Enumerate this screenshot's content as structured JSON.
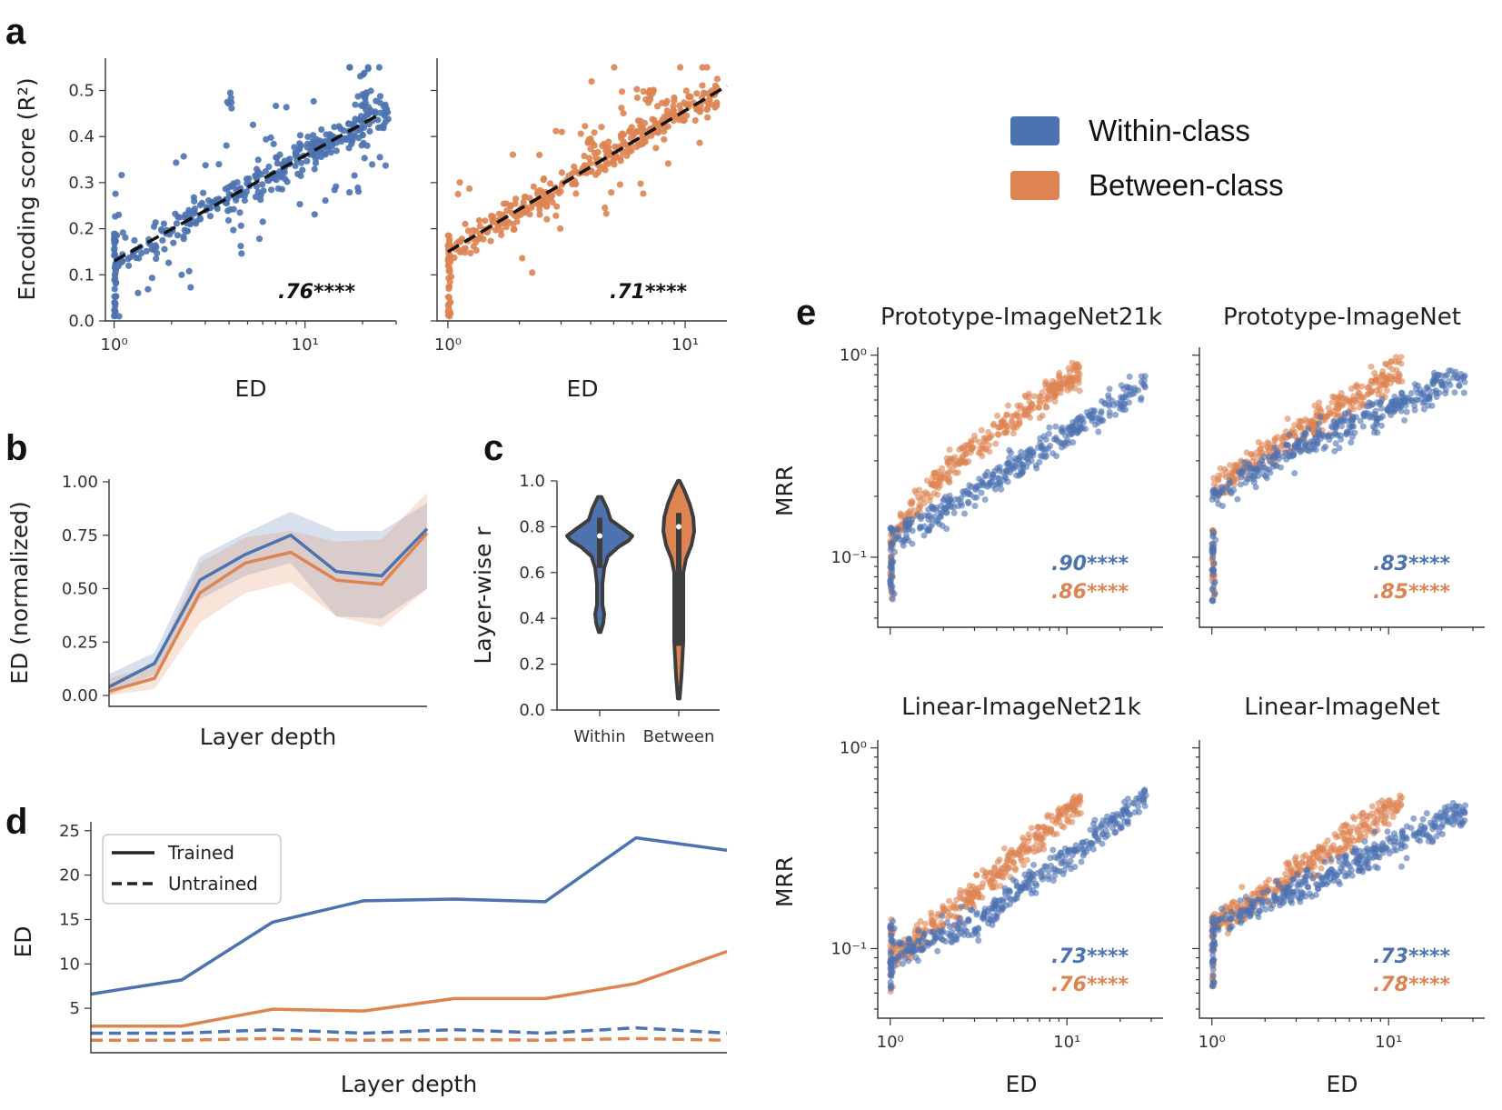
{
  "colors": {
    "within": "#4c72b0",
    "between": "#dd8452",
    "fit": "#111111"
  },
  "legend": {
    "items": [
      {
        "label": "Within-class",
        "color": "#4c72b0"
      },
      {
        "label": "Between-class",
        "color": "#dd8452"
      }
    ]
  },
  "panels": {
    "a": {
      "letter": "a"
    },
    "b": {
      "letter": "b"
    },
    "c": {
      "letter": "c"
    },
    "d": {
      "letter": "d"
    },
    "e": {
      "letter": "e"
    }
  },
  "chart_data": [
    {
      "id": "a-left",
      "type": "scatter",
      "xlabel": "ED",
      "ylabel": "Encoding score (R²)",
      "x_scale": "log",
      "xlim": [
        0.9,
        30
      ],
      "ylim": [
        0,
        0.57
      ],
      "x_ticks": [
        {
          "value": 1,
          "label": "10⁰"
        },
        {
          "value": 10,
          "label": "10¹"
        }
      ],
      "y_ticks": [
        "0.0",
        "0.1",
        "0.2",
        "0.3",
        "0.4",
        "0.5"
      ],
      "series": [
        {
          "color": "#4c72b0",
          "trend": {
            "x": [
              1,
              25
            ],
            "y": [
              0.13,
              0.45
            ]
          }
        }
      ],
      "annotation": {
        "italic": ".76",
        "suffix": "****"
      }
    },
    {
      "id": "a-right",
      "type": "scatter",
      "xlabel": "ED",
      "x_scale": "log",
      "xlim": [
        0.9,
        15
      ],
      "ylim": [
        0,
        0.57
      ],
      "x_ticks": [
        {
          "value": 1,
          "label": "10⁰"
        },
        {
          "value": 10,
          "label": "10¹"
        }
      ],
      "series": [
        {
          "color": "#dd8452",
          "trend": {
            "x": [
              1,
              15
            ],
            "y": [
              0.15,
              0.51
            ]
          }
        }
      ],
      "annotation": {
        "italic": ".71",
        "suffix": "****"
      }
    },
    {
      "id": "b",
      "type": "line",
      "xlabel": "Layer depth",
      "ylabel": "ED (normalized)",
      "ylim": [
        0,
        1.0
      ],
      "y_ticks": [
        "0.00",
        "0.25",
        "0.50",
        "0.75",
        "1.00"
      ],
      "series": [
        {
          "color": "#4c72b0",
          "values": [
            0.04,
            0.15,
            0.54,
            0.66,
            0.75,
            0.58,
            0.56,
            0.78
          ],
          "upper": [
            0.1,
            0.2,
            0.65,
            0.76,
            0.86,
            0.77,
            0.77,
            0.9
          ],
          "lower": [
            0.0,
            0.1,
            0.45,
            0.56,
            0.62,
            0.37,
            0.36,
            0.5
          ]
        },
        {
          "color": "#dd8452",
          "values": [
            0.02,
            0.08,
            0.48,
            0.62,
            0.67,
            0.54,
            0.52,
            0.76
          ],
          "upper": [
            0.08,
            0.14,
            0.62,
            0.74,
            0.77,
            0.72,
            0.73,
            0.95
          ],
          "lower": [
            0.0,
            0.03,
            0.34,
            0.48,
            0.53,
            0.37,
            0.32,
            0.5
          ]
        }
      ]
    },
    {
      "id": "c",
      "type": "violin",
      "ylabel": "Layer-wise r",
      "ylim": [
        0,
        1.0
      ],
      "y_ticks": [
        "0.0",
        "0.2",
        "0.4",
        "0.6",
        "0.8",
        "1.0"
      ],
      "categories": [
        "Within",
        "Between"
      ],
      "series": [
        {
          "name": "Within",
          "color": "#4c72b0",
          "min": 0.34,
          "max": 0.93,
          "median": 0.76
        },
        {
          "name": "Between",
          "color": "#dd8452",
          "min": 0.05,
          "max": 1.0,
          "median": 0.8
        }
      ]
    },
    {
      "id": "d",
      "type": "line",
      "xlabel": "Layer depth",
      "ylabel": "ED",
      "ylim": [
        0,
        26
      ],
      "y_ticks": [
        "5",
        "10",
        "15",
        "20",
        "25"
      ],
      "legend": [
        {
          "label": "Trained",
          "style": "solid"
        },
        {
          "label": "Untrained",
          "style": "dashed"
        }
      ],
      "series": [
        {
          "color": "#4c72b0",
          "style": "solid",
          "values": [
            6.6,
            8.2,
            14.7,
            17.1,
            17.3,
            17.0,
            24.2,
            22.8
          ]
        },
        {
          "color": "#dd8452",
          "style": "solid",
          "values": [
            3.0,
            3.0,
            4.9,
            4.7,
            6.1,
            6.1,
            7.8,
            11.4
          ]
        },
        {
          "color": "#4c72b0",
          "style": "dashed",
          "values": [
            2.2,
            2.2,
            2.6,
            2.2,
            2.6,
            2.2,
            2.8,
            2.2
          ]
        },
        {
          "color": "#dd8452",
          "style": "dashed",
          "values": [
            1.4,
            1.4,
            1.6,
            1.4,
            1.5,
            1.4,
            1.6,
            1.4
          ]
        }
      ]
    },
    {
      "id": "e-1",
      "type": "scatter",
      "title": "Prototype-ImageNet21k",
      "ylabel": "MRR",
      "x_scale": "log",
      "y_scale": "log",
      "xlim": [
        0.85,
        35
      ],
      "ylim": [
        0.045,
        1.05
      ],
      "y_ticks": [
        {
          "value": 1,
          "label": "10⁰"
        },
        {
          "value": 0.1,
          "label": "10⁻¹"
        }
      ],
      "annotations": [
        {
          "italic": ".90",
          "suffix": "****",
          "color": "#4c72b0"
        },
        {
          "italic": ".86",
          "suffix": "****",
          "color": "#dd8452"
        }
      ]
    },
    {
      "id": "e-2",
      "type": "scatter",
      "title": "Prototype-ImageNet",
      "x_scale": "log",
      "y_scale": "log",
      "xlim": [
        0.85,
        35
      ],
      "ylim": [
        0.045,
        1.05
      ],
      "annotations": [
        {
          "italic": ".83",
          "suffix": "****",
          "color": "#4c72b0"
        },
        {
          "italic": ".85",
          "suffix": "****",
          "color": "#dd8452"
        }
      ]
    },
    {
      "id": "e-3",
      "type": "scatter",
      "title": "Linear-ImageNet21k",
      "ylabel": "MRR",
      "xlabel": "ED",
      "x_scale": "log",
      "y_scale": "log",
      "xlim": [
        0.85,
        35
      ],
      "ylim": [
        0.045,
        1.05
      ],
      "x_ticks": [
        {
          "value": 1,
          "label": "10⁰"
        },
        {
          "value": 10,
          "label": "10¹"
        }
      ],
      "y_ticks": [
        {
          "value": 1,
          "label": "10⁰"
        },
        {
          "value": 0.1,
          "label": "10⁻¹"
        }
      ],
      "annotations": [
        {
          "italic": ".73",
          "suffix": "****",
          "color": "#4c72b0"
        },
        {
          "italic": ".76",
          "suffix": "****",
          "color": "#dd8452"
        }
      ]
    },
    {
      "id": "e-4",
      "type": "scatter",
      "title": "Linear-ImageNet",
      "xlabel": "ED",
      "x_scale": "log",
      "y_scale": "log",
      "xlim": [
        0.85,
        35
      ],
      "ylim": [
        0.045,
        1.05
      ],
      "x_ticks": [
        {
          "value": 1,
          "label": "10⁰"
        },
        {
          "value": 10,
          "label": "10¹"
        }
      ],
      "annotations": [
        {
          "italic": ".73",
          "suffix": "****",
          "color": "#4c72b0"
        },
        {
          "italic": ".78",
          "suffix": "****",
          "color": "#dd8452"
        }
      ]
    }
  ]
}
